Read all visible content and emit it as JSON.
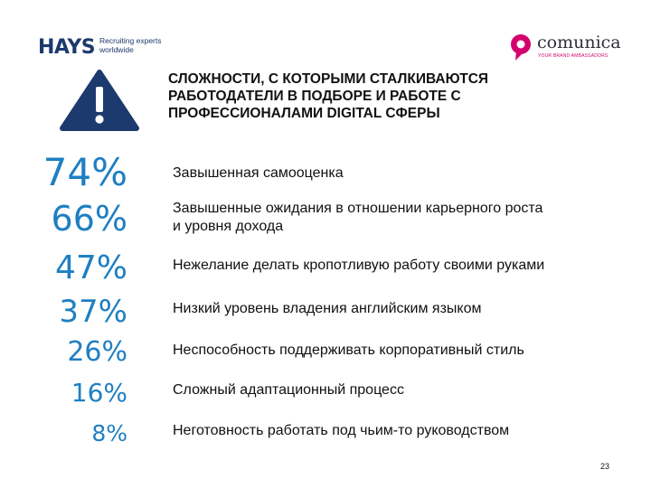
{
  "header": {
    "hays_logo_text": "HAYS",
    "hays_tagline": "Recruiting experts worldwide",
    "comunica_logo_text": "comunica",
    "comunica_tagline": "YOUR BRAND AMBASSADORS"
  },
  "slide": {
    "title": "СЛОЖНОСТИ, С КОТОРЫМИ СТАЛКИВАЮТСЯ РАБОТОДАТЕЛИ В ПОДБОРЕ И РАБОТЕ С ПРОФЕССИОНАЛАМИ DIGITAL СФЕРЫ",
    "items": [
      {
        "percent": "74%",
        "text": "Завышенная самооценка"
      },
      {
        "percent": "66%",
        "text": "Завышенные ожидания в отношении карьерного роста и уровня дохода"
      },
      {
        "percent": "47%",
        "text": "Нежелание делать кропотливую работу своими руками"
      },
      {
        "percent": "37%",
        "text": "Низкий уровень владения английским языком"
      },
      {
        "percent": "26%",
        "text": "Неспособность поддерживать корпоративный стиль"
      },
      {
        "percent": "16%",
        "text": "Сложный адаптационный процесс"
      },
      {
        "percent": "8%",
        "text": "Неготовность работать под чьим-то руководством"
      }
    ],
    "page_number": "23"
  },
  "colors": {
    "brand_navy": "#1d3a6e",
    "percent_blue": "#1e7fc2",
    "comunica_pink": "#d4006e"
  },
  "icons": {
    "warning": "warning-triangle-icon",
    "comunica": "comunica-speech-bubble-icon"
  }
}
